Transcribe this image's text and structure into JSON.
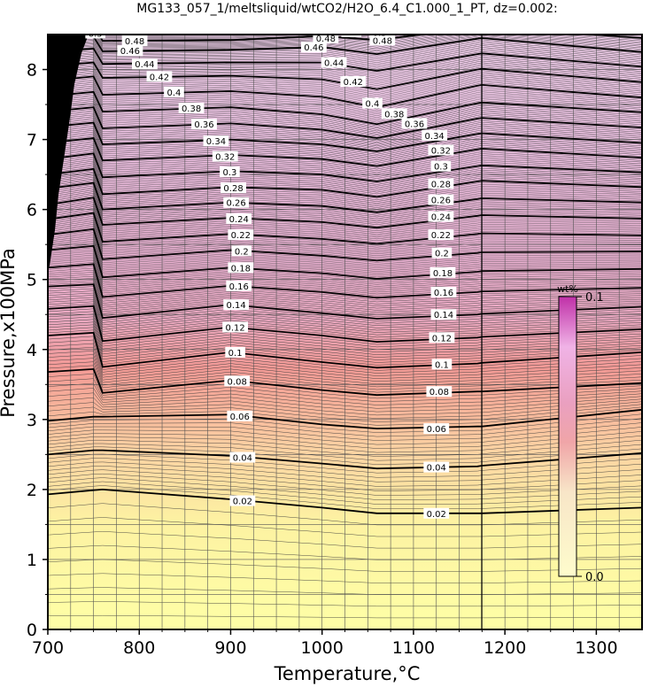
{
  "title": "MG133_057_1/meltsliquid/wtCO2/H2O_6.4_C1.000_1_PT, dz=0.002:",
  "chart_data": {
    "type": "heatmap",
    "title": "MG133_057_1/meltsliquid/wtCO2/H2O_6.4_C1.000_1_PT, dz=0.002:",
    "xlabel": "Temperature,°C",
    "ylabel": "Pressure,x100MPa",
    "xlim": [
      700,
      1350
    ],
    "ylim": [
      0,
      8.5
    ],
    "x_ticks": [
      700,
      800,
      900,
      1000,
      1100,
      1200,
      1300
    ],
    "x_tick_labels": [
      "700",
      "800",
      "900",
      "1000",
      "1100",
      "1200",
      "1300"
    ],
    "y_ticks": [
      0,
      1,
      2,
      3,
      4,
      5,
      6,
      7,
      8
    ],
    "y_tick_labels": [
      "0",
      "1",
      "2",
      "3",
      "4",
      "5",
      "6",
      "7",
      "8"
    ],
    "grid": true,
    "colorbar": {
      "label": "wt%",
      "min_label": "0.0",
      "max_label": "0.1",
      "range": [
        0.0,
        0.1
      ],
      "colors": [
        "#feffa6",
        "#fbd3a3",
        "#f39a96",
        "#f2b6d8",
        "#fad3f6",
        "#c030a8"
      ]
    },
    "contour_values": [
      0.02,
      0.04,
      0.06,
      0.08,
      0.1,
      0.12,
      0.14,
      0.16,
      0.18,
      0.2,
      0.22,
      0.24,
      0.26,
      0.28,
      0.3,
      0.32,
      0.34,
      0.36,
      0.38,
      0.4,
      0.42,
      0.44,
      0.46,
      0.48,
      0.5
    ],
    "contour_labels": [
      "0.02",
      "0.04",
      "0.06",
      "0.08",
      "0.1",
      "0.12",
      "0.14",
      "0.16",
      "0.18",
      "0.2",
      "0.22",
      "0.24",
      "0.26",
      "0.28",
      "0.3",
      "0.32",
      "0.34",
      "0.36",
      "0.38",
      "0.4",
      "0.42",
      "0.44",
      "0.46",
      "0.48",
      "0.5"
    ],
    "contour_label_positions": {
      "left": [
        {
          "label": "0.02",
          "x": 913,
          "y": 1.84
        },
        {
          "label": "0.04",
          "x": 913,
          "y": 2.46
        },
        {
          "label": "0.06",
          "x": 910,
          "y": 3.05
        },
        {
          "label": "0.08",
          "x": 907,
          "y": 3.55
        },
        {
          "label": "0.1",
          "x": 905,
          "y": 3.96
        },
        {
          "label": "0.12",
          "x": 905,
          "y": 4.32
        },
        {
          "label": "0.14",
          "x": 906,
          "y": 4.64
        },
        {
          "label": "0.16",
          "x": 909,
          "y": 4.91
        },
        {
          "label": "0.18",
          "x": 911,
          "y": 5.17
        },
        {
          "label": "0.2",
          "x": 912,
          "y": 5.41
        },
        {
          "label": "0.22",
          "x": 911,
          "y": 5.64
        },
        {
          "label": "0.24",
          "x": 909,
          "y": 5.87
        },
        {
          "label": "0.26",
          "x": 906,
          "y": 6.1
        },
        {
          "label": "0.28",
          "x": 903,
          "y": 6.31
        },
        {
          "label": "0.3",
          "x": 899,
          "y": 6.54
        },
        {
          "label": "0.32",
          "x": 894,
          "y": 6.76
        },
        {
          "label": "0.34",
          "x": 884,
          "y": 6.98
        },
        {
          "label": "0.36",
          "x": 871,
          "y": 7.22
        },
        {
          "label": "0.38",
          "x": 857,
          "y": 7.45
        },
        {
          "label": "0.4",
          "x": 838,
          "y": 7.68
        },
        {
          "label": "0.42",
          "x": 822,
          "y": 7.9
        },
        {
          "label": "0.44",
          "x": 806,
          "y": 8.08
        },
        {
          "label": "0.46",
          "x": 790,
          "y": 8.27
        },
        {
          "label": "0.48",
          "x": 795,
          "y": 8.41
        },
        {
          "label": "0.5",
          "x": 752,
          "y": 8.52
        }
      ],
      "right": [
        {
          "label": "0.02",
          "x": 1125,
          "y": 1.66
        },
        {
          "label": "0.04",
          "x": 1125,
          "y": 2.32
        },
        {
          "label": "0.06",
          "x": 1125,
          "y": 2.87
        },
        {
          "label": "0.08",
          "x": 1128,
          "y": 3.4
        },
        {
          "label": "0.1",
          "x": 1131,
          "y": 3.79
        },
        {
          "label": "0.12",
          "x": 1131,
          "y": 4.17
        },
        {
          "label": "0.14",
          "x": 1133,
          "y": 4.5
        },
        {
          "label": "0.16",
          "x": 1133,
          "y": 4.82
        },
        {
          "label": "0.18",
          "x": 1132,
          "y": 5.1
        },
        {
          "label": "0.2",
          "x": 1131,
          "y": 5.38
        },
        {
          "label": "0.22",
          "x": 1130,
          "y": 5.64
        },
        {
          "label": "0.24",
          "x": 1130,
          "y": 5.9
        },
        {
          "label": "0.26",
          "x": 1130,
          "y": 6.14
        },
        {
          "label": "0.28",
          "x": 1130,
          "y": 6.37
        },
        {
          "label": "0.3",
          "x": 1130,
          "y": 6.62
        },
        {
          "label": "0.32",
          "x": 1130,
          "y": 6.85
        },
        {
          "label": "0.34",
          "x": 1123,
          "y": 7.06
        },
        {
          "label": "0.36",
          "x": 1101,
          "y": 7.23
        },
        {
          "label": "0.38",
          "x": 1079,
          "y": 7.37
        },
        {
          "label": "0.4",
          "x": 1055,
          "y": 7.52
        },
        {
          "label": "0.42",
          "x": 1034,
          "y": 7.83
        },
        {
          "label": "0.44",
          "x": 1013,
          "y": 8.1
        },
        {
          "label": "0.46",
          "x": 991,
          "y": 8.32
        },
        {
          "label": "0.48",
          "x": 1004,
          "y": 8.45
        },
        {
          "label": "0.5",
          "x": 1032,
          "y": 8.54
        }
      ],
      "right_extra": [
        {
          "label": "0.48",
          "x": 1066,
          "y": 8.42
        },
        {
          "label": "0.5",
          "x": 1063,
          "y": 8.53
        }
      ]
    },
    "contour_levels_shape": {
      "description": "Pressure (x100MPa) of each 0.02 wt% contour at reference temperatures",
      "temperatures": [
        700,
        750,
        760,
        900,
        1000,
        1060,
        1170,
        1175,
        1350
      ],
      "levels": [
        {
          "value": 0.02,
          "p": [
            1.93,
            1.99,
            2.0,
            1.86,
            1.74,
            1.66,
            1.66,
            1.66,
            1.74
          ]
        },
        {
          "value": 0.04,
          "p": [
            2.5,
            2.56,
            2.56,
            2.48,
            2.37,
            2.3,
            2.33,
            2.34,
            2.52
          ]
        },
        {
          "value": 0.06,
          "p": [
            2.98,
            3.04,
            3.04,
            3.07,
            2.93,
            2.87,
            2.9,
            2.9,
            3.14
          ]
        },
        {
          "value": 0.08,
          "p": [
            3.68,
            3.72,
            3.38,
            3.56,
            3.42,
            3.35,
            3.4,
            3.4,
            3.52
          ]
        },
        {
          "value": 0.1,
          "p": [
            4.2,
            4.24,
            3.75,
            3.96,
            3.82,
            3.74,
            3.8,
            3.81,
            3.96
          ]
        },
        {
          "value": 0.12,
          "p": [
            4.58,
            4.62,
            4.12,
            4.32,
            4.2,
            4.11,
            4.17,
            4.18,
            4.29
          ]
        },
        {
          "value": 0.14,
          "p": [
            4.9,
            4.93,
            4.45,
            4.64,
            4.52,
            4.44,
            4.5,
            4.51,
            4.61
          ]
        },
        {
          "value": 0.16,
          "p": [
            5.17,
            5.22,
            4.75,
            4.91,
            4.82,
            4.74,
            4.82,
            4.83,
            4.88
          ]
        },
        {
          "value": 0.18,
          "p": [
            5.42,
            5.48,
            5.03,
            5.17,
            5.09,
            5.01,
            5.11,
            5.12,
            5.15
          ]
        },
        {
          "value": 0.2,
          "p": [
            5.64,
            5.72,
            5.29,
            5.42,
            5.34,
            5.27,
            5.38,
            5.39,
            5.4
          ]
        },
        {
          "value": 0.22,
          "p": [
            5.86,
            5.95,
            5.54,
            5.65,
            5.58,
            5.51,
            5.65,
            5.66,
            5.63
          ]
        },
        {
          "value": 0.24,
          "p": [
            6.07,
            6.17,
            5.78,
            5.88,
            5.82,
            5.74,
            5.91,
            5.92,
            5.87
          ]
        },
        {
          "value": 0.26,
          "p": [
            6.3,
            6.38,
            6.0,
            6.1,
            6.05,
            5.96,
            6.15,
            6.16,
            6.1
          ]
        },
        {
          "value": 0.28,
          "p": [
            6.5,
            6.58,
            6.22,
            6.32,
            6.28,
            6.18,
            6.4,
            6.41,
            6.32
          ]
        },
        {
          "value": 0.3,
          "p": [
            6.72,
            6.8,
            6.46,
            6.55,
            6.5,
            6.4,
            6.62,
            6.63,
            6.53
          ]
        },
        {
          "value": 0.32,
          "p": [
            6.95,
            7.02,
            6.7,
            6.78,
            6.72,
            6.62,
            6.86,
            6.87,
            6.74
          ]
        },
        {
          "value": 0.34,
          "p": [
            7.18,
            7.24,
            6.93,
            7.0,
            6.93,
            6.83,
            7.08,
            7.09,
            6.95
          ]
        },
        {
          "value": 0.36,
          "p": [
            7.4,
            7.46,
            7.16,
            7.23,
            7.14,
            7.02,
            7.3,
            7.31,
            7.17
          ]
        },
        {
          "value": 0.38,
          "p": [
            7.62,
            7.68,
            7.4,
            7.46,
            7.36,
            7.22,
            7.52,
            7.53,
            7.39
          ]
        },
        {
          "value": 0.4,
          "p": [
            7.84,
            7.9,
            7.64,
            7.69,
            7.61,
            7.46,
            7.77,
            7.78,
            7.6
          ]
        },
        {
          "value": 0.42,
          "p": [
            8.05,
            8.1,
            7.88,
            7.91,
            7.86,
            7.72,
            8.0,
            8.01,
            7.82
          ]
        },
        {
          "value": 0.44,
          "p": [
            8.25,
            8.3,
            8.08,
            8.1,
            8.1,
            7.98,
            8.22,
            8.23,
            8.04
          ]
        },
        {
          "value": 0.46,
          "p": [
            8.42,
            8.47,
            8.26,
            8.28,
            8.32,
            8.22,
            8.44,
            8.45,
            8.25
          ]
        },
        {
          "value": 0.48,
          "p": [
            8.56,
            8.62,
            8.41,
            8.42,
            8.48,
            8.42,
            8.6,
            8.61,
            8.45
          ]
        },
        {
          "value": 0.5,
          "p": [
            8.7,
            8.75,
            8.55,
            8.56,
            8.62,
            8.58,
            8.75,
            8.76,
            8.64
          ]
        }
      ]
    }
  }
}
